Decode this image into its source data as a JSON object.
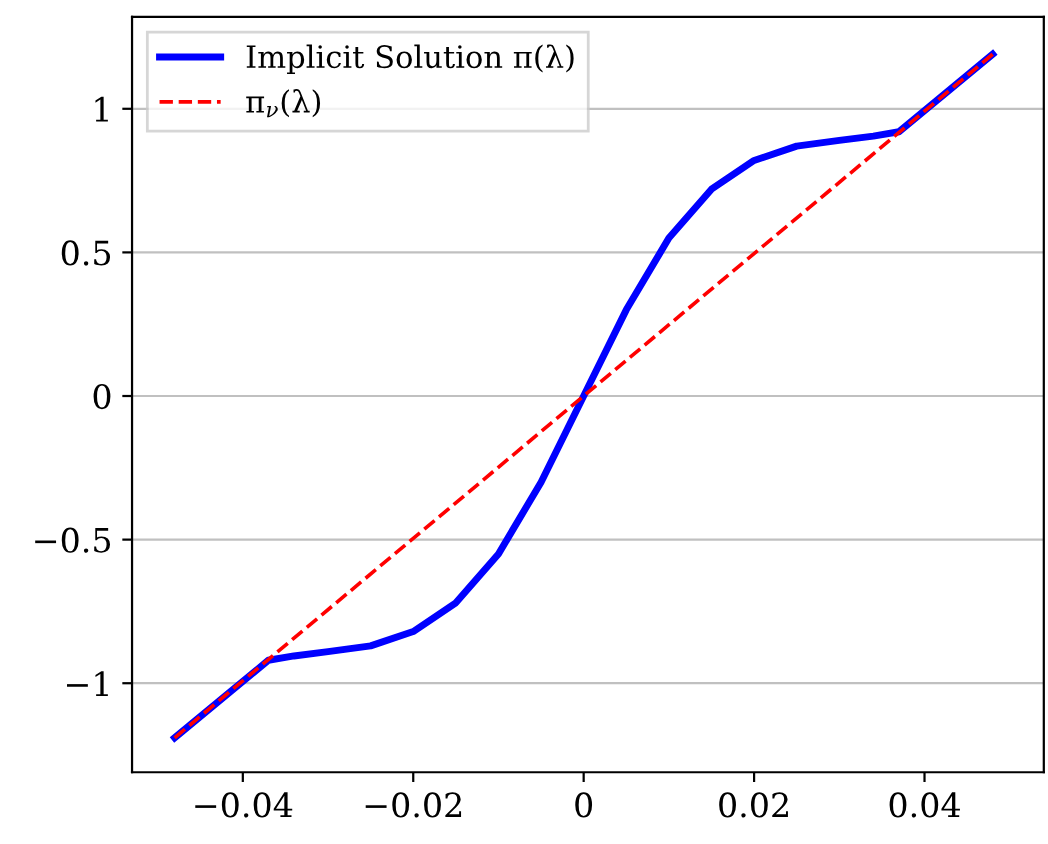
{
  "chart_data": {
    "type": "line",
    "xlim": [
      -0.053,
      0.054
    ],
    "ylim": [
      -1.31,
      1.32
    ],
    "xticks": [
      {
        "value": -0.04,
        "label": "−0.04"
      },
      {
        "value": -0.02,
        "label": "−0.02"
      },
      {
        "value": 0,
        "label": "0"
      },
      {
        "value": 0.02,
        "label": "0.02"
      },
      {
        "value": 0.04,
        "label": "0.04"
      }
    ],
    "yticks": [
      {
        "value": -1,
        "label": "−1"
      },
      {
        "value": -0.5,
        "label": "−0.5"
      },
      {
        "value": 0,
        "label": "0"
      },
      {
        "value": 0.5,
        "label": "0.5"
      },
      {
        "value": 1,
        "label": "1"
      }
    ],
    "grid": "y",
    "legend": "top left",
    "marker": "none",
    "series": [
      {
        "name": "Implicit Solution π(λ)",
        "color": "#0000ff",
        "line_style": "solid",
        "x": [
          -0.048,
          -0.037,
          -0.034,
          -0.03,
          -0.025,
          -0.02,
          -0.015,
          -0.01,
          -0.005,
          0,
          0.005,
          0.01,
          0.015,
          0.02,
          0.025,
          0.03,
          0.034,
          0.037,
          0.048
        ],
        "values": [
          -1.19,
          -0.92,
          -0.905,
          -0.89,
          -0.87,
          -0.82,
          -0.72,
          -0.55,
          -0.3,
          0,
          0.3,
          0.55,
          0.72,
          0.82,
          0.87,
          0.89,
          0.905,
          0.92,
          1.19
        ]
      },
      {
        "name": "π$_{ν}$(λ)",
        "color": "#ff0000",
        "line_style": "dashed",
        "x": [
          -0.048,
          0.048
        ],
        "values": [
          -1.19,
          1.19
        ]
      }
    ]
  }
}
